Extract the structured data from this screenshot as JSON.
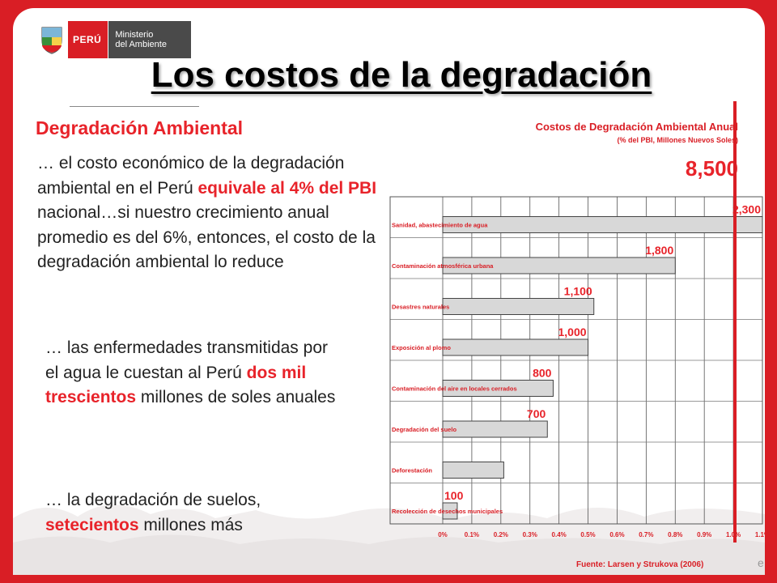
{
  "logo": {
    "country": "PERÚ",
    "ministry_line1": "Ministerio",
    "ministry_line2": "del Ambiente"
  },
  "slide_title": "Los costos de la degradación",
  "left": {
    "heading": "Degradación Ambiental",
    "p1_a": "… el costo económico de la degradación ambiental en el Perú ",
    "p1_red": "equivale al 4% del PBI",
    "p1_b": " nacional…si nuestro crecimiento anual promedio es del 6%, entonces, el costo de la degradación ambiental lo reduce",
    "p2_a": "… las enfermedades transmitidas por el agua le cuestan al Perú ",
    "p2_red1": "dos mil",
    "p2_red2": "trescientos",
    "p2_b": " millones de soles anuales",
    "p3_a": "… la degradación de suelos, ",
    "p3_red": "setecientos",
    "p3_b": " millones más"
  },
  "chart_data": {
    "type": "bar",
    "orientation": "horizontal",
    "title": "Costos de Degradación Ambiental Anual",
    "subtitle": "(% del PBI, Millones Nuevos Soles)",
    "total_label": "8,500",
    "categories": [
      "Sanidad, abastecimiento de agua",
      "Contaminación atmosférica urbana",
      "Desastres naturales",
      "Exposición al plomo",
      "Contaminación del aire en locales cerrados",
      "Degradación del suelo",
      "Deforestación",
      "Recolección de desechos municipales"
    ],
    "values": [
      1.1,
      0.8,
      0.52,
      0.5,
      0.38,
      0.36,
      0.21,
      0.05
    ],
    "value_labels": [
      "2,300",
      "1,800",
      "1,100",
      "1,000",
      "800",
      "700",
      "",
      "100"
    ],
    "x_ticks": [
      "0%",
      "0.1%",
      "0.2%",
      "0.3%",
      "0.4%",
      "0.5%",
      "0.6%",
      "0.7%",
      "0.8%",
      "0.9%",
      "1.0%",
      "1.1%"
    ],
    "xlim": [
      0,
      1.1
    ],
    "grid": true,
    "colors": {
      "bar": "#d8d8d8",
      "bar_edge": "#444444",
      "label": "#e8232a"
    }
  },
  "source": "Fuente: Larsen y Strukova (2006)",
  "page_fragment": "e"
}
